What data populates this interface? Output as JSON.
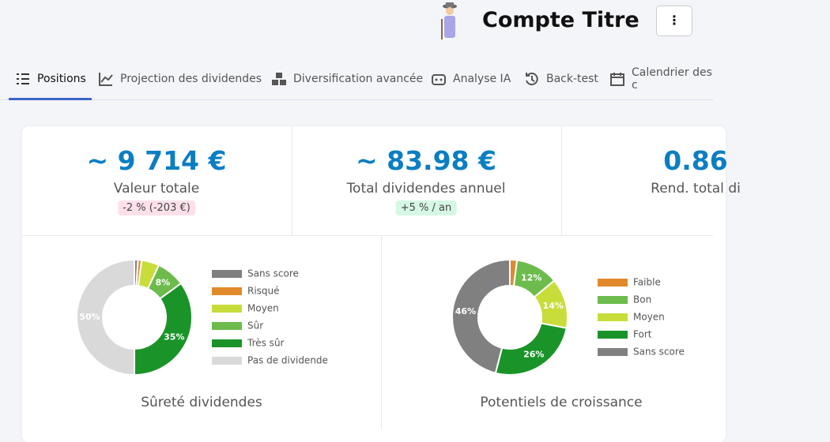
{
  "header": {
    "title": "Compte Titre"
  },
  "tabs": [
    "Positions",
    "Projection des dividendes",
    "Diversification avancée",
    "Analyse IA",
    "Back-test",
    "Calendrier des c"
  ],
  "stats": [
    {
      "value": "~ 9 714 €",
      "label": "Valeur totale",
      "badge": "-2 % (-203 €)"
    },
    {
      "value": "~ 83.98 €",
      "label": "Total dividendes annuel",
      "badge": "+5 % / an"
    },
    {
      "value": "0.86",
      "label": "Rend. total di"
    }
  ],
  "charts": [
    {
      "type": "pie",
      "donut": true,
      "title": "Sûreté dividendes",
      "categories": [
        "Sans score",
        "Risqué",
        "Moyen",
        "Sûr",
        "Très sûr",
        "Pas de dividende"
      ],
      "values": [
        1,
        1,
        5,
        8,
        35,
        50
      ],
      "value_labels": [
        null,
        null,
        null,
        "8%",
        "35%",
        "50%"
      ],
      "colors": [
        "#808080",
        "#e08a2c",
        "#c8dd3a",
        "#6cbb4c",
        "#1a9428",
        "#d9d9d9"
      ]
    },
    {
      "type": "pie",
      "donut": true,
      "title": "Potentiels de croissance",
      "categories": [
        "Faible",
        "Bon",
        "Moyen",
        "Fort",
        "Sans score"
      ],
      "values": [
        2,
        12,
        14,
        26,
        46
      ],
      "value_labels": [
        null,
        "12%",
        "14%",
        "26%",
        "46%"
      ],
      "colors": [
        "#e08a2c",
        "#6cbb4c",
        "#c8dd3a",
        "#1a9428",
        "#808080"
      ]
    }
  ]
}
